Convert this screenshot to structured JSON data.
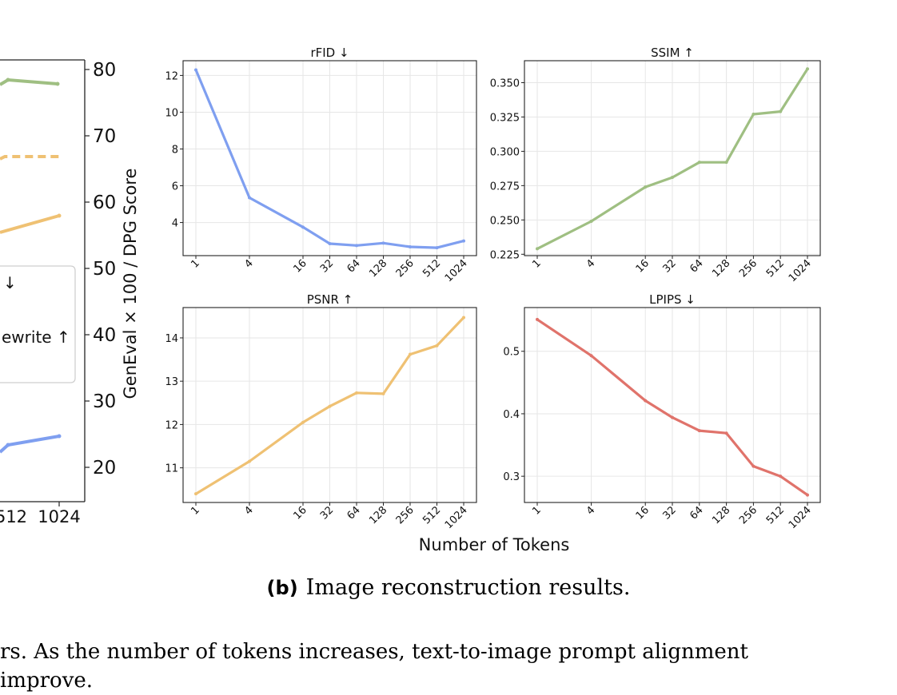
{
  "left_panel": {
    "y_axis_label": "GenEval × 100 / DPG Score",
    "y_ticks": [
      20,
      30,
      40,
      50,
      60,
      70,
      80
    ],
    "x_ticks_visible": [
      "512",
      "1024"
    ],
    "legend_fragments": [
      "↓",
      "ewrite ↑"
    ],
    "series_colors": {
      "green": "#9fbf82",
      "orange": "#efc173",
      "blue": "#7f9ff0"
    }
  },
  "shared_xlabel": "Number of Tokens",
  "x_tick_labels": [
    "1",
    "4",
    "16",
    "32",
    "64",
    "128",
    "256",
    "512",
    "1024"
  ],
  "chart_data": [
    {
      "type": "line",
      "title": "rFID ↓",
      "color": "#7f9ff0",
      "x": [
        1,
        4,
        16,
        32,
        64,
        128,
        256,
        512,
        1024
      ],
      "values": [
        12.3,
        5.35,
        3.75,
        2.85,
        2.75,
        2.88,
        2.68,
        2.63,
        3.0
      ],
      "yticks": [
        4,
        6,
        8,
        10,
        12
      ],
      "ylim": [
        2.2,
        12.8
      ],
      "xscale": "log2",
      "grid": true
    },
    {
      "type": "line",
      "title": "SSIM ↑",
      "color": "#9fbf82",
      "x": [
        1,
        4,
        16,
        32,
        64,
        128,
        256,
        512,
        1024
      ],
      "values": [
        0.229,
        0.249,
        0.274,
        0.281,
        0.292,
        0.292,
        0.327,
        0.329,
        0.36
      ],
      "yticks": [
        "0.225",
        "0.250",
        "0.275",
        "0.300",
        "0.325",
        "0.350"
      ],
      "ylim": [
        0.224,
        0.366
      ],
      "xscale": "log2",
      "grid": true
    },
    {
      "type": "line",
      "title": "PSNR ↑",
      "color": "#efc173",
      "x": [
        1,
        4,
        16,
        32,
        64,
        128,
        256,
        512,
        1024
      ],
      "values": [
        10.4,
        11.15,
        12.05,
        12.42,
        12.73,
        12.71,
        13.62,
        13.82,
        14.47
      ],
      "yticks": [
        11,
        12,
        13,
        14
      ],
      "ylim": [
        10.2,
        14.7
      ],
      "xscale": "log2",
      "grid": true
    },
    {
      "type": "line",
      "title": "LPIPS ↓",
      "color": "#e0736b",
      "x": [
        1,
        4,
        16,
        32,
        64,
        128,
        256,
        512,
        1024
      ],
      "values": [
        0.551,
        0.493,
        0.421,
        0.394,
        0.373,
        0.369,
        0.316,
        0.3,
        0.27
      ],
      "yticks": [
        0.3,
        0.4,
        0.5
      ],
      "ylim": [
        0.258,
        0.57
      ],
      "xscale": "log2",
      "grid": true
    }
  ],
  "caption": {
    "label": "(b)",
    "text": "Image reconstruction results."
  },
  "body_text": {
    "line1": "rs.  As the number of tokens increases, text-to-image prompt alignment",
    "line2": "improve."
  }
}
